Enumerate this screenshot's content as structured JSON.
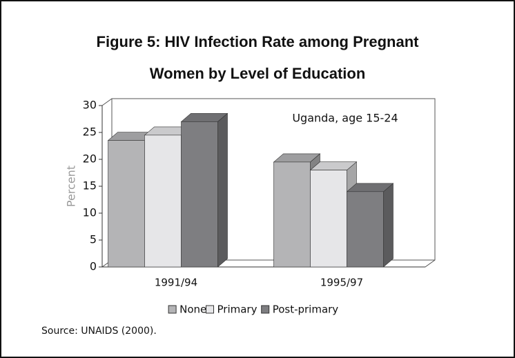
{
  "chart_data": {
    "type": "bar3d",
    "title": "Figure 5: HIV Infection Rate among Pregnant",
    "subtitle": "Women by Level of Education",
    "ylabel": "Percent",
    "annotation": "Uganda, age 15-24",
    "source": "Source: UNAIDS (2000).",
    "categories": [
      "1991/94",
      "1995/97"
    ],
    "series": [
      {
        "name": "None",
        "color": "#b4b4b6",
        "values": [
          23.5,
          19.5
        ]
      },
      {
        "name": "Primary",
        "color": "#e6e6e8",
        "values": [
          24.5,
          18
        ]
      },
      {
        "name": "Post-primary",
        "color": "#7e7e81",
        "values": [
          27,
          14
        ]
      }
    ],
    "ylim": [
      0,
      30
    ],
    "yticks": [
      0,
      5,
      10,
      15,
      20,
      25,
      30
    ],
    "legend": "bottom"
  }
}
